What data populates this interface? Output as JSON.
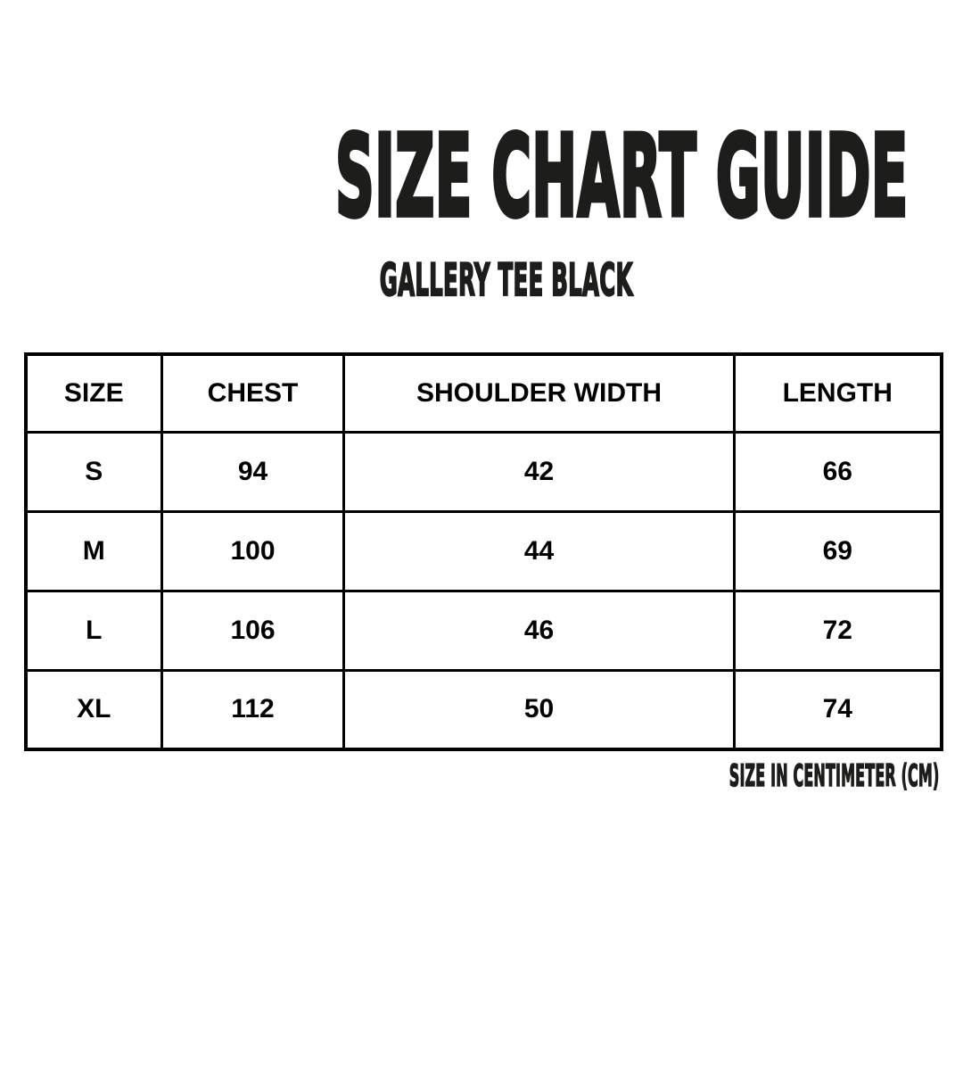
{
  "header": {
    "title": "SIZE CHART GUIDE",
    "subtitle": "GALLERY TEE BLACK"
  },
  "size_table": {
    "columns": [
      "SIZE",
      "CHEST",
      "SHOULDER WIDTH",
      "LENGTH"
    ],
    "rows": [
      [
        "S",
        "94",
        "42",
        "66"
      ],
      [
        "M",
        "100",
        "44",
        "69"
      ],
      [
        "L",
        "106",
        "46",
        "72"
      ],
      [
        "XL",
        "112",
        "50",
        "74"
      ]
    ]
  },
  "footer": {
    "unit_note": "SIZE IN CENTIMETER (CM)"
  },
  "colors": {
    "heading": "#1d1d1b",
    "table": "#000000",
    "background": "#ffffff"
  },
  "chart_data": {
    "type": "table",
    "title": "SIZE CHART GUIDE",
    "subtitle": "GALLERY TEE BLACK",
    "columns": [
      "SIZE",
      "CHEST",
      "SHOULDER WIDTH",
      "LENGTH"
    ],
    "rows": [
      {
        "size": "S",
        "chest": 94,
        "shoulder_width": 42,
        "length": 66
      },
      {
        "size": "M",
        "chest": 100,
        "shoulder_width": 44,
        "length": 69
      },
      {
        "size": "L",
        "chest": 106,
        "shoulder_width": 46,
        "length": 72
      },
      {
        "size": "XL",
        "chest": 112,
        "shoulder_width": 50,
        "length": 74
      }
    ],
    "unit_note": "SIZE IN CENTIMETER (CM)"
  }
}
